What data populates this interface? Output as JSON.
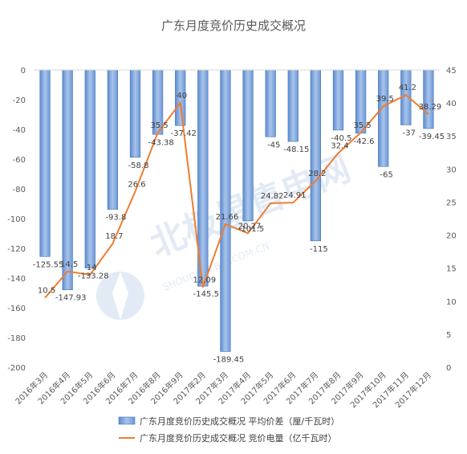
{
  "chart_data": {
    "type": "bar",
    "title": "广东月度竞价历史成交概况",
    "categories": [
      "2016年3月",
      "2016年4月",
      "2016年5月",
      "2016年6月",
      "2016年7月",
      "2016年8月",
      "2016年9月",
      "2017年2月",
      "2017年3月",
      "2017年4月",
      "2017年5月",
      "2017年6月",
      "2017年7月",
      "2017年8月",
      "2017年9月",
      "2017年10月",
      "2017年11月",
      "2017年12月"
    ],
    "left_axis": {
      "ylim": [
        -200,
        0
      ],
      "ticks": [
        0,
        -20,
        -40,
        -60,
        -80,
        -100,
        -120,
        -140,
        -160,
        -180,
        -200
      ]
    },
    "right_axis": {
      "ylim": [
        0,
        45
      ],
      "ticks": [
        0,
        5,
        10,
        15,
        20,
        25,
        30,
        35,
        40,
        45
      ]
    },
    "series": [
      {
        "name": "广东月度竞价历史成交概况 平均价差（厘/千瓦时）",
        "type": "bar",
        "axis": "left",
        "color": "#7fa7dc",
        "values": [
          -125.55,
          -147.93,
          -133.28,
          -93.8,
          -58.8,
          -43.38,
          -37.42,
          -145.5,
          -189.45,
          -101.5,
          -45,
          -48.15,
          -115,
          -40.5,
          -42.6,
          -65,
          -37,
          -39.45
        ],
        "labels": [
          "-125.55",
          "-147.93",
          "-133.28",
          "-93.8",
          "-58.8",
          "-43.38",
          "-37.42",
          "-145.5",
          "-189.45",
          "-101.5",
          "-45",
          "-48.15",
          "-115",
          "-40.5",
          "-42.6",
          "-65",
          "-37",
          "-39.45"
        ]
      },
      {
        "name": "广东月度竞价历史成交概况 竞价电量（亿千瓦时）",
        "type": "line",
        "axis": "right",
        "color": "#ed7d31",
        "values": [
          10.5,
          14.5,
          14,
          18.7,
          26.6,
          35.5,
          40,
          12.09,
          21.66,
          20.27,
          24.82,
          24.91,
          28.2,
          32.4,
          35.5,
          39.5,
          41.2,
          38.29
        ],
        "labels": [
          "10.5",
          "14.5",
          "14",
          "18.7",
          "26.6",
          "35.5",
          "40",
          "12.09",
          "21.66",
          "20.27",
          "24.82",
          "24.91",
          "28.2",
          "32.4",
          "35.5",
          "39.5",
          "41.2",
          "38.29"
        ]
      }
    ],
    "grid": false,
    "legend": "bottom"
  },
  "watermark": {
    "main": "北极星售电网",
    "sub": "SHOUDIAN.BJX.COM.CN"
  }
}
